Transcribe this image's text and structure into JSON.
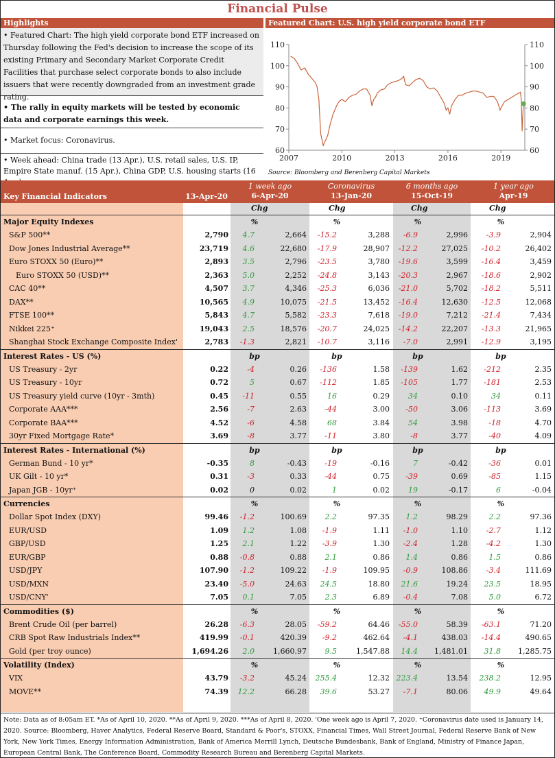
{
  "title": "Financial Pulse",
  "highlights": {
    "header": "Highlights",
    "items": [
      "• Featured Chart: The high yield corporate bond ETF increased on Thursday following the Fed's decision to increase the scope of its existing Primary and Secondary Market Corporate Credit Facilities that purchase select corporate bonds to also include issuers that were recently downgraded from an investment grade rating.",
      "• The rally in equity markets will be tested by economic data and corporate earnings this week.",
      "• Market focus: Coronavirus.",
      "• Week ahead: China trade (13 Apr.), U.S. retail sales, U.S. IP, Empire State manuf. (15 Apr.), China GDP, U.S. housing starts (16 Apr.)."
    ]
  },
  "chart_header": "Featured Chart: U.S. high yield corporate bond ETF",
  "chart_source": "Source: Bloomberg and Berenberg Capital Markets",
  "chart_data": {
    "type": "line",
    "title": "",
    "xlabel": "",
    "ylabel": "",
    "x_ticks": [
      "2007",
      "2010",
      "2013",
      "2016",
      "2019"
    ],
    "y_ticks": [
      60,
      70,
      80,
      90,
      100,
      110
    ],
    "xlim": [
      2007.0,
      2020.35
    ],
    "ylim": [
      60,
      110
    ],
    "grid": false,
    "line_color": "#c8643c",
    "marker_color": "#6aaa4a",
    "series": [
      {
        "x": [
          2007.1,
          2007.3,
          2007.5,
          2007.7,
          2007.9,
          2008.1,
          2008.3,
          2008.5,
          2008.6,
          2008.7,
          2008.75,
          2008.8,
          2008.85,
          2008.9,
          2008.95,
          2009.0,
          2009.1,
          2009.2,
          2009.3,
          2009.4,
          2009.5,
          2009.6,
          2009.7,
          2009.8,
          2009.9,
          2010.0,
          2010.2,
          2010.4,
          2010.6,
          2010.8,
          2011.0,
          2011.2,
          2011.4,
          2011.6,
          2011.7,
          2011.8,
          2011.9,
          2012.0,
          2012.2,
          2012.4,
          2012.6,
          2012.8,
          2013.0,
          2013.2,
          2013.4,
          2013.5,
          2013.6,
          2013.8,
          2014.0,
          2014.2,
          2014.4,
          2014.6,
          2014.8,
          2015.0,
          2015.2,
          2015.4,
          2015.6,
          2015.8,
          2015.9,
          2016.0,
          2016.1,
          2016.2,
          2016.4,
          2016.6,
          2016.8,
          2017.0,
          2017.2,
          2017.4,
          2017.6,
          2017.8,
          2018.0,
          2018.2,
          2018.4,
          2018.6,
          2018.8,
          2018.95,
          2019.0,
          2019.2,
          2019.4,
          2019.6,
          2019.8,
          2020.0,
          2020.1,
          2020.15,
          2020.18,
          2020.2,
          2020.22,
          2020.25,
          2020.28
        ],
        "y": [
          104.5,
          103.5,
          101,
          98,
          99,
          96,
          94,
          92,
          90,
          84,
          76,
          68,
          66,
          64,
          62,
          63.5,
          65,
          67,
          71,
          74,
          77,
          79,
          81,
          82.5,
          83.5,
          84,
          83,
          85,
          86,
          86.5,
          88,
          89,
          89,
          86,
          81,
          84,
          85,
          87,
          88.5,
          89,
          91,
          92,
          92.5,
          93,
          94,
          95,
          91,
          90.5,
          92,
          93.5,
          94,
          93,
          90,
          89,
          89.5,
          88,
          85,
          82,
          79,
          80,
          77,
          81,
          84,
          86,
          86,
          87,
          87.5,
          88,
          88,
          87.5,
          87,
          85,
          85.5,
          85.5,
          83,
          79,
          80,
          83,
          84,
          85,
          86,
          87,
          87.5,
          84,
          75,
          69,
          74,
          79,
          82
        ]
      }
    ],
    "marker": {
      "x": 2020.28,
      "y": 82
    }
  },
  "table": {
    "title": "Key Financial Indicators",
    "col_current": "13-Apr-20",
    "cols": [
      {
        "top": "1 week ago",
        "bottom": "6-Apr-20"
      },
      {
        "top": "Coronavirus",
        "bottom": "13-Jan-20"
      },
      {
        "top": "6 months ago",
        "bottom": "15-Oct-19"
      },
      {
        "top": "1 year ago",
        "bottom": "Apr-19"
      }
    ],
    "chg_label": "Chg",
    "sections": [
      {
        "name": "Major Equity Indexes",
        "unit": "%",
        "rows": [
          {
            "label": "S&P 500**",
            "cur": "2,790",
            "v": [
              [
                "4.7",
                "2,664"
              ],
              [
                "-15.2",
                "3,288"
              ],
              [
                "-6.9",
                "2,996"
              ],
              [
                "-3.9",
                "2,904"
              ]
            ]
          },
          {
            "label": "Dow Jones Industrial Average**",
            "cur": "23,719",
            "v": [
              [
                "4.6",
                "22,680"
              ],
              [
                "-17.9",
                "28,907"
              ],
              [
                "-12.2",
                "27,025"
              ],
              [
                "-10.2",
                "26,402"
              ]
            ]
          },
          {
            "label": "Euro STOXX 50 (Euro)**",
            "cur": "2,893",
            "v": [
              [
                "3.5",
                "2,796"
              ],
              [
                "-23.5",
                "3,780"
              ],
              [
                "-19.6",
                "3,599"
              ],
              [
                "-16.4",
                "3,459"
              ]
            ]
          },
          {
            "label": "Euro STOXX 50 (USD)**",
            "cur": "2,363",
            "indent": true,
            "v": [
              [
                "5.0",
                "2,252"
              ],
              [
                "-24.8",
                "3,143"
              ],
              [
                "-20.3",
                "2,967"
              ],
              [
                "-18.6",
                "2,902"
              ]
            ]
          },
          {
            "label": "CAC 40**",
            "cur": "4,507",
            "v": [
              [
                "3.7",
                "4,346"
              ],
              [
                "-25.3",
                "6,036"
              ],
              [
                "-21.0",
                "5,702"
              ],
              [
                "-18.2",
                "5,511"
              ]
            ]
          },
          {
            "label": "DAX**",
            "cur": "10,565",
            "v": [
              [
                "4.9",
                "10,075"
              ],
              [
                "-21.5",
                "13,452"
              ],
              [
                "-16.4",
                "12,630"
              ],
              [
                "-12.5",
                "12,068"
              ]
            ]
          },
          {
            "label": "FTSE 100**",
            "cur": "5,843",
            "v": [
              [
                "4.7",
                "5,582"
              ],
              [
                "-23.3",
                "7,618"
              ],
              [
                "-19.0",
                "7,212"
              ],
              [
                "-21.4",
                "7,434"
              ]
            ]
          },
          {
            "label": "Nikkei 225⁺",
            "cur": "19,043",
            "v": [
              [
                "2.5",
                "18,576"
              ],
              [
                "-20.7",
                "24,025"
              ],
              [
                "-14.2",
                "22,207"
              ],
              [
                "-13.3",
                "21,965"
              ]
            ]
          },
          {
            "label": "Shanghai Stock Exchange Composite Index'",
            "cur": "2,783",
            "v": [
              [
                "-1.3",
                "2,821"
              ],
              [
                "-10.7",
                "3,116"
              ],
              [
                "-7.0",
                "2,991"
              ],
              [
                "-12.9",
                "3,195"
              ]
            ]
          }
        ]
      },
      {
        "name": "Interest Rates - US (%)",
        "unit": "bp",
        "rows": [
          {
            "label": "US Treasury - 2yr",
            "cur": "0.22",
            "v": [
              [
                "-4",
                "0.26"
              ],
              [
                "-136",
                "1.58"
              ],
              [
                "-139",
                "1.62"
              ],
              [
                "-212",
                "2.35"
              ]
            ]
          },
          {
            "label": "US Treasury - 10yr",
            "cur": "0.72",
            "v": [
              [
                "5",
                "0.67"
              ],
              [
                "-112",
                "1.85"
              ],
              [
                "-105",
                "1.77"
              ],
              [
                "-181",
                "2.53"
              ]
            ]
          },
          {
            "label": "US Treasury yield curve (10yr - 3mth)",
            "cur": "0.45",
            "v": [
              [
                "-11",
                "0.55"
              ],
              [
                "16",
                "0.29"
              ],
              [
                "34",
                "0.10"
              ],
              [
                "34",
                "0.11"
              ]
            ]
          },
          {
            "label": "Corporate AAA***",
            "cur": "2.56",
            "v": [
              [
                "-7",
                "2.63"
              ],
              [
                "-44",
                "3.00"
              ],
              [
                "-50",
                "3.06"
              ],
              [
                "-113",
                "3.69"
              ]
            ]
          },
          {
            "label": "Corporate BAA***",
            "cur": "4.52",
            "v": [
              [
                "-6",
                "4.58"
              ],
              [
                "68",
                "3.84"
              ],
              [
                "54",
                "3.98"
              ],
              [
                "-18",
                "4.70"
              ]
            ]
          },
          {
            "label": "30yr Fixed Mortgage Rate*",
            "cur": "3.69",
            "v": [
              [
                "-8",
                "3.77"
              ],
              [
                "-11",
                "3.80"
              ],
              [
                "-8",
                "3.77"
              ],
              [
                "-40",
                "4.09"
              ]
            ]
          }
        ]
      },
      {
        "name": "Interest Rates - International (%)",
        "unit": "bp",
        "rows": [
          {
            "label": "German Bund - 10 yr*",
            "cur": "-0.35",
            "v": [
              [
                "8",
                "-0.43"
              ],
              [
                "-19",
                "-0.16"
              ],
              [
                "7",
                "-0.42"
              ],
              [
                "-36",
                "0.01"
              ]
            ]
          },
          {
            "label": "UK Gilt - 10 yr*",
            "cur": "0.31",
            "v": [
              [
                "-3",
                "0.33"
              ],
              [
                "-44",
                "0.75"
              ],
              [
                "-39",
                "0.69"
              ],
              [
                "-85",
                "1.15"
              ]
            ]
          },
          {
            "label": "Japan JGB - 10yr⁺",
            "cur": "0.02",
            "v": [
              [
                "0",
                "0.02"
              ],
              [
                "1",
                "0.02"
              ],
              [
                "19",
                "-0.17"
              ],
              [
                "6",
                "-0.04"
              ]
            ]
          }
        ]
      },
      {
        "name": "Currencies",
        "unit": "%",
        "rows": [
          {
            "label": "Dollar Spot Index (DXY)",
            "cur": "99.46",
            "v": [
              [
                "-1.2",
                "100.69"
              ],
              [
                "2.2",
                "97.35"
              ],
              [
                "1.2",
                "98.29"
              ],
              [
                "2.2",
                "97.36"
              ]
            ]
          },
          {
            "label": "EUR/USD",
            "cur": "1.09",
            "v": [
              [
                "1.2",
                "1.08"
              ],
              [
                "-1.9",
                "1.11"
              ],
              [
                "-1.0",
                "1.10"
              ],
              [
                "-2.7",
                "1.12"
              ]
            ]
          },
          {
            "label": "GBP/USD",
            "cur": "1.25",
            "v": [
              [
                "2.1",
                "1.22"
              ],
              [
                "-3.9",
                "1.30"
              ],
              [
                "-2.4",
                "1.28"
              ],
              [
                "-4.2",
                "1.30"
              ]
            ]
          },
          {
            "label": "EUR/GBP",
            "cur": "0.88",
            "v": [
              [
                "-0.8",
                "0.88"
              ],
              [
                "2.1",
                "0.86"
              ],
              [
                "1.4",
                "0.86"
              ],
              [
                "1.5",
                "0.86"
              ]
            ]
          },
          {
            "label": "USD/JPY",
            "cur": "107.90",
            "v": [
              [
                "-1.2",
                "109.22"
              ],
              [
                "-1.9",
                "109.95"
              ],
              [
                "-0.9",
                "108.86"
              ],
              [
                "-3.4",
                "111.69"
              ]
            ]
          },
          {
            "label": "USD/MXN",
            "cur": "23.40",
            "v": [
              [
                "-5.0",
                "24.63"
              ],
              [
                "24.5",
                "18.80"
              ],
              [
                "21.6",
                "19.24"
              ],
              [
                "23.5",
                "18.95"
              ]
            ]
          },
          {
            "label": "USD/CNY'",
            "cur": "7.05",
            "v": [
              [
                "0.1",
                "7.05"
              ],
              [
                "2.3",
                "6.89"
              ],
              [
                "-0.4",
                "7.08"
              ],
              [
                "5.0",
                "6.72"
              ]
            ]
          }
        ]
      },
      {
        "name": "Commodities ($)",
        "unit": "%",
        "rows": [
          {
            "label": "Brent Crude Oil (per barrel)",
            "cur": "26.28",
            "v": [
              [
                "-6.3",
                "28.05"
              ],
              [
                "-59.2",
                "64.46"
              ],
              [
                "-55.0",
                "58.39"
              ],
              [
                "-63.1",
                "71.20"
              ]
            ]
          },
          {
            "label": "CRB Spot Raw Industrials Index**",
            "cur": "419.99",
            "v": [
              [
                "-0.1",
                "420.39"
              ],
              [
                "-9.2",
                "462.64"
              ],
              [
                "-4.1",
                "438.03"
              ],
              [
                "-14.4",
                "490.65"
              ]
            ]
          },
          {
            "label": "Gold (per troy ounce)",
            "cur": "1,694.26",
            "v": [
              [
                "2.0",
                "1,660.97"
              ],
              [
                "9.5",
                "1,547.88"
              ],
              [
                "14.4",
                "1,481.01"
              ],
              [
                "31.8",
                "1,285.75"
              ]
            ]
          }
        ]
      },
      {
        "name": "Volatility (Index)",
        "unit": "%",
        "rows": [
          {
            "label": "VIX",
            "cur": "43.79",
            "v": [
              [
                "-3.2",
                "45.24"
              ],
              [
                "255.4",
                "12.32"
              ],
              [
                "223.4",
                "13.54"
              ],
              [
                "238.2",
                "12.95"
              ]
            ]
          },
          {
            "label": "MOVE**",
            "cur": "74.39",
            "v": [
              [
                "12.2",
                "66.28"
              ],
              [
                "39.6",
                "53.27"
              ],
              [
                "-7.1",
                "80.06"
              ],
              [
                "49.9",
                "49.64"
              ]
            ]
          }
        ]
      }
    ]
  },
  "note": "Note: Data as of 8:05am ET. *As of April 10, 2020. **As of April 9, 2020. ***As of April 8, 2020. 'One week ago is April 7, 2020. ⁺Coronavirus date used is January 14, 2020. Source: Bloomberg, Haver Analytics, Federal Reserve Board, Standard & Poor's, STOXX, Financial Times, Wall Street Journal, Federal Reserve Bank of New York, New York Times, Energy Information Administration, Bank of America Merrill Lynch, Deutsche Bundesbank, Bank of England, Ministry of Finance Japan, European Central Bank, The Conference Board, Commodity Research Bureau and Berenberg Capital Markets."
}
